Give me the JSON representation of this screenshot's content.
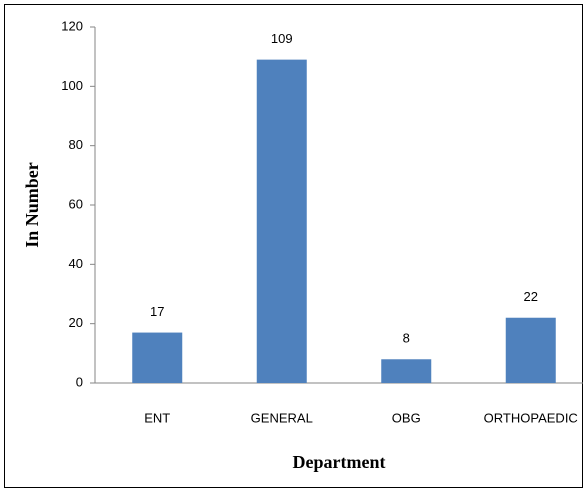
{
  "chart_data": {
    "type": "bar",
    "x_label": "Department",
    "y_label": "In Number",
    "categories": [
      "ENT",
      "GENERAL",
      "OBG",
      "ORTHOPAEDIC"
    ],
    "values": [
      17,
      109,
      8,
      22
    ],
    "color": "#4f81bd",
    "ylim": [
      0,
      120
    ],
    "yticks": [
      0,
      20,
      40,
      60,
      80,
      100,
      120
    ],
    "grid": false
  }
}
